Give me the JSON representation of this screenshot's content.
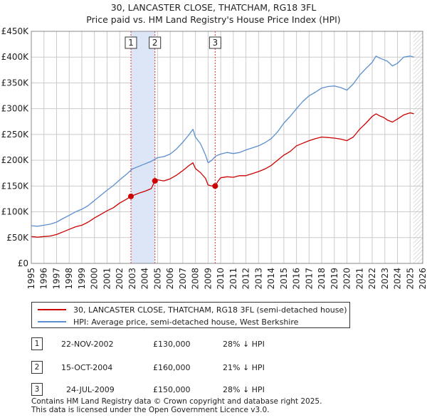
{
  "title": {
    "line1": "30, LANCASTER CLOSE, THATCHAM, RG18 3FL",
    "line2": "Price paid vs. HM Land Registry's House Price Index (HPI)"
  },
  "colors": {
    "price_paid": "#cc0000",
    "hpi": "#5b8fd0",
    "shade": "#dde6f7",
    "grid": "#cccccc"
  },
  "chart_data": {
    "type": "line",
    "title": "Price paid vs. HM Land Registry's House Price Index (HPI)",
    "xlabel": "",
    "ylabel": "",
    "xlim": [
      1995,
      2026
    ],
    "ylim": [
      0,
      450000
    ],
    "x_ticks": [
      "1995",
      "1996",
      "1997",
      "1998",
      "1999",
      "2000",
      "2001",
      "2002",
      "2003",
      "2004",
      "2005",
      "2006",
      "2007",
      "2008",
      "2009",
      "2010",
      "2011",
      "2012",
      "2013",
      "2014",
      "2015",
      "2016",
      "2017",
      "2018",
      "2019",
      "2020",
      "2021",
      "2022",
      "2023",
      "2024",
      "2025",
      "2026"
    ],
    "y_ticks": [
      {
        "value": 0,
        "label": "£0"
      },
      {
        "value": 50000,
        "label": "£50K"
      },
      {
        "value": 100000,
        "label": "£100K"
      },
      {
        "value": 150000,
        "label": "£150K"
      },
      {
        "value": 200000,
        "label": "£200K"
      },
      {
        "value": 250000,
        "label": "£250K"
      },
      {
        "value": 300000,
        "label": "£300K"
      },
      {
        "value": 350000,
        "label": "£350K"
      },
      {
        "value": 400000,
        "label": "£400K"
      },
      {
        "value": 450000,
        "label": "£450K"
      }
    ],
    "series": [
      {
        "name": "30, LANCASTER CLOSE, THATCHAM, RG18 3FL (semi-detached house)",
        "color": "#cc0000",
        "x": [
          1995.0,
          1995.5,
          1996.0,
          1996.5,
          1997.0,
          1997.5,
          1998.0,
          1998.5,
          1999.0,
          1999.5,
          2000.0,
          2000.5,
          2001.0,
          2001.5,
          2002.0,
          2002.5,
          2002.9,
          2003.2,
          2003.5,
          2004.0,
          2004.5,
          2004.79,
          2005.0,
          2005.5,
          2006.0,
          2006.5,
          2007.0,
          2007.5,
          2007.8,
          2008.0,
          2008.4,
          2008.8,
          2009.0,
          2009.3,
          2009.56,
          2009.8,
          2010.0,
          2010.5,
          2011.0,
          2011.5,
          2012.0,
          2012.5,
          2013.0,
          2013.5,
          2014.0,
          2014.5,
          2015.0,
          2015.5,
          2016.0,
          2016.5,
          2017.0,
          2017.5,
          2018.0,
          2018.5,
          2019.0,
          2019.5,
          2020.0,
          2020.5,
          2021.0,
          2021.5,
          2022.0,
          2022.3,
          2022.6,
          2022.9,
          2023.2,
          2023.6,
          2024.0,
          2024.5,
          2025.0,
          2025.3
        ],
        "y": [
          52000,
          51000,
          52000,
          53000,
          56000,
          61000,
          66000,
          71000,
          74000,
          80000,
          88000,
          95000,
          102000,
          108000,
          117000,
          124000,
          130000,
          133000,
          136000,
          140000,
          145000,
          160000,
          162000,
          160000,
          164000,
          171000,
          180000,
          190000,
          195000,
          184000,
          176000,
          165000,
          152000,
          150000,
          150000,
          160000,
          166000,
          168000,
          167000,
          170000,
          170000,
          174000,
          178000,
          183000,
          190000,
          200000,
          210000,
          217000,
          228000,
          233000,
          238000,
          242000,
          245000,
          244000,
          243000,
          241000,
          238000,
          245000,
          260000,
          272000,
          285000,
          290000,
          286000,
          283000,
          278000,
          274000,
          280000,
          288000,
          292000,
          290000
        ]
      },
      {
        "name": "HPI: Average price, semi-detached house, West Berkshire",
        "color": "#5b8fd0",
        "x": [
          1995.0,
          1995.5,
          1996.0,
          1996.5,
          1997.0,
          1997.5,
          1998.0,
          1998.5,
          1999.0,
          1999.5,
          2000.0,
          2000.5,
          2001.0,
          2001.5,
          2002.0,
          2002.5,
          2003.0,
          2003.5,
          2004.0,
          2004.5,
          2005.0,
          2005.5,
          2006.0,
          2006.5,
          2007.0,
          2007.5,
          2007.8,
          2008.0,
          2008.4,
          2008.8,
          2009.0,
          2009.3,
          2009.6,
          2010.0,
          2010.5,
          2011.0,
          2011.5,
          2012.0,
          2012.5,
          2013.0,
          2013.5,
          2014.0,
          2014.5,
          2015.0,
          2015.5,
          2016.0,
          2016.5,
          2017.0,
          2017.5,
          2018.0,
          2018.5,
          2019.0,
          2019.5,
          2020.0,
          2020.5,
          2021.0,
          2021.5,
          2022.0,
          2022.3,
          2022.6,
          2022.9,
          2023.2,
          2023.6,
          2024.0,
          2024.5,
          2025.0,
          2025.3
        ],
        "y": [
          73000,
          72000,
          74000,
          76000,
          80000,
          87000,
          93000,
          100000,
          105000,
          112000,
          122000,
          132000,
          142000,
          151000,
          162000,
          172000,
          183000,
          188000,
          193000,
          198000,
          205000,
          207000,
          212000,
          222000,
          235000,
          250000,
          260000,
          245000,
          232000,
          210000,
          195000,
          200000,
          208000,
          212000,
          215000,
          213000,
          215000,
          220000,
          224000,
          228000,
          234000,
          242000,
          255000,
          272000,
          285000,
          300000,
          314000,
          325000,
          332000,
          340000,
          343000,
          344000,
          341000,
          336000,
          348000,
          365000,
          378000,
          390000,
          402000,
          398000,
          395000,
          392000,
          383000,
          388000,
          400000,
          402000,
          400000
        ]
      }
    ],
    "sales": [
      {
        "id": "1",
        "x": 2002.89,
        "y": 130000
      },
      {
        "id": "2",
        "x": 2004.79,
        "y": 160000
      },
      {
        "id": "3",
        "x": 2009.56,
        "y": 150000
      }
    ],
    "shaded_range": [
      2002.89,
      2004.79
    ],
    "future_hatch_from": 2025.25
  },
  "legend": {
    "price_paid": "30, LANCASTER CLOSE, THATCHAM, RG18 3FL (semi-detached house)",
    "hpi": "HPI: Average price, semi-detached house, West Berkshire"
  },
  "sales_table": [
    {
      "num": "1",
      "date": "22-NOV-2002",
      "price": "£130,000",
      "hpi": "28% ↓ HPI"
    },
    {
      "num": "2",
      "date": "15-OCT-2004",
      "price": "£160,000",
      "hpi": "21% ↓ HPI"
    },
    {
      "num": "3",
      "date": "24-JUL-2009",
      "price": "£150,000",
      "hpi": "28% ↓ HPI"
    }
  ],
  "footer": {
    "line1": "Contains HM Land Registry data © Crown copyright and database right 2025.",
    "line2": "This data is licensed under the Open Government Licence v3.0."
  }
}
